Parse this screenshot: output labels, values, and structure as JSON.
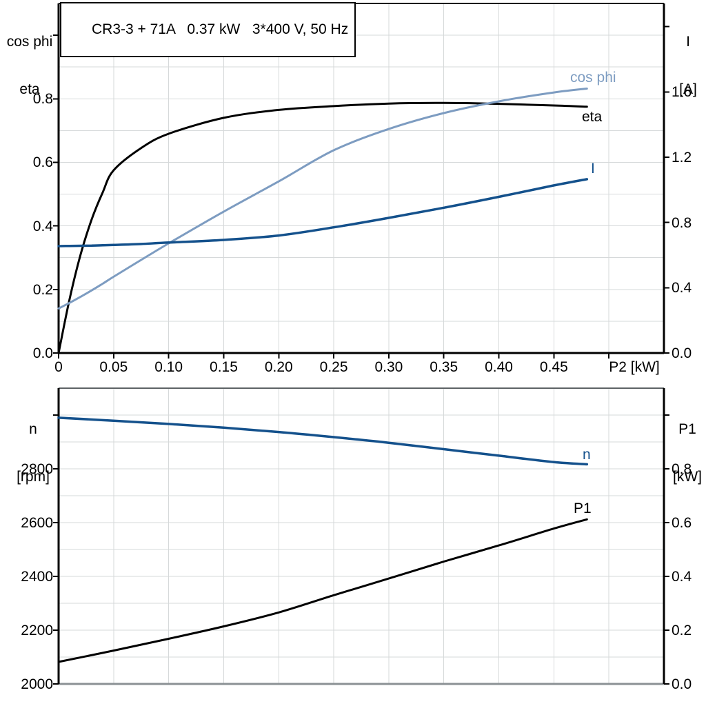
{
  "title_box": {
    "text": "CR3-3 + 71A   0.37 kW   3*400 V, 50 Hz"
  },
  "colors": {
    "grid": "#d6d9da",
    "axis": "#000000",
    "light_blue": "#7d9cc1",
    "dark_blue": "#14518c",
    "chart2_top_border": "#5d6265",
    "chart2_bottom_border": "#8b9194"
  },
  "chart_data": [
    {
      "type": "line",
      "title": "CR3-3 + 71A   0.37 kW   3*400 V, 50 Hz",
      "x_axis": {
        "label": "P2 [kW]",
        "tick_values": [
          0,
          0.05,
          0.1,
          0.15,
          0.2,
          0.25,
          0.3,
          0.35,
          0.4,
          0.45
        ],
        "tick_labels": [
          "0",
          "0.05",
          "0.10",
          "0.15",
          "0.20",
          "0.25",
          "0.30",
          "0.35",
          "0.40",
          "0.45"
        ],
        "extra_tick_values": [
          0.5
        ],
        "range": [
          0,
          0.55
        ],
        "grid_step": 0.05
      },
      "left_axis": {
        "title_lines": [
          "cos phi",
          "eta"
        ],
        "tick_values": [
          0,
          0.2,
          0.4,
          0.6,
          0.8
        ],
        "tick_labels": [
          "0.0",
          "0.2",
          "0.4",
          "0.6",
          "0.8"
        ],
        "extra_tick_values": [
          1.0
        ],
        "range": [
          0,
          1.1
        ],
        "grid_step": 0.1
      },
      "right_axis": {
        "title_lines": [
          "I",
          "[A]"
        ],
        "tick_values": [
          0,
          0.4,
          0.8,
          1.2,
          1.6
        ],
        "tick_labels": [
          "0.0",
          "0.4",
          "0.8",
          "1.2",
          "1.6"
        ],
        "extra_tick_values": [
          2.0
        ],
        "range": [
          0,
          2.142
        ]
      },
      "x": [
        0,
        0.01,
        0.02,
        0.03,
        0.04,
        0.05,
        0.075,
        0.1,
        0.15,
        0.2,
        0.25,
        0.3,
        0.35,
        0.4,
        0.45,
        0.48
      ],
      "series": [
        {
          "name": "eta",
          "axis": "left",
          "color": "#000000",
          "width": 3,
          "values": [
            0,
            0.17,
            0.31,
            0.42,
            0.505,
            0.575,
            0.645,
            0.69,
            0.74,
            0.765,
            0.777,
            0.785,
            0.787,
            0.784,
            0.779,
            0.775
          ]
        },
        {
          "name": "cos phi",
          "axis": "left",
          "color": "#7d9cc1",
          "width": 3,
          "values": [
            0.14,
            0.158,
            0.177,
            0.197,
            0.218,
            0.24,
            0.293,
            0.345,
            0.445,
            0.54,
            0.638,
            0.705,
            0.755,
            0.792,
            0.82,
            0.832
          ]
        },
        {
          "name": "I",
          "axis": "right",
          "color": "#14518c",
          "width": 3.5,
          "values": [
            0.655,
            0.656,
            0.657,
            0.658,
            0.66,
            0.662,
            0.668,
            0.677,
            0.693,
            0.72,
            0.77,
            0.828,
            0.89,
            0.957,
            1.027,
            1.065
          ]
        }
      ]
    },
    {
      "type": "line",
      "x_axis": {
        "label": "",
        "tick_values": [],
        "tick_labels": [],
        "extra_tick_values": [],
        "range": [
          0,
          0.55
        ],
        "grid_step": 0.05
      },
      "left_axis": {
        "title_lines": [
          "n",
          "[rpm]"
        ],
        "tick_values": [
          2000,
          2200,
          2400,
          2600,
          2800
        ],
        "tick_labels": [
          "2000",
          "2200",
          "2400",
          "2600",
          "2800"
        ],
        "extra_tick_values": [
          3000
        ],
        "range": [
          2000,
          3100
        ],
        "grid_step": 100
      },
      "right_axis": {
        "title_lines": [
          "P1",
          "[kW]"
        ],
        "tick_values": [
          0,
          0.2,
          0.4,
          0.6,
          0.8
        ],
        "tick_labels": [
          "0.0",
          "0.2",
          "0.4",
          "0.6",
          "0.8"
        ],
        "extra_tick_values": [
          1.0
        ],
        "range": [
          0,
          1.1
        ]
      },
      "x": [
        0,
        0.05,
        0.1,
        0.15,
        0.2,
        0.25,
        0.3,
        0.35,
        0.4,
        0.45,
        0.48
      ],
      "series": [
        {
          "name": "n",
          "axis": "left",
          "color": "#14518c",
          "width": 3.5,
          "values": [
            2990,
            2979,
            2967,
            2953,
            2937,
            2918,
            2897,
            2873,
            2849,
            2825,
            2817
          ]
        },
        {
          "name": "P1",
          "axis": "right",
          "color": "#000000",
          "width": 3,
          "values": [
            0.082,
            0.124,
            0.168,
            0.214,
            0.266,
            0.33,
            0.392,
            0.455,
            0.515,
            0.578,
            0.612
          ]
        }
      ]
    }
  ]
}
